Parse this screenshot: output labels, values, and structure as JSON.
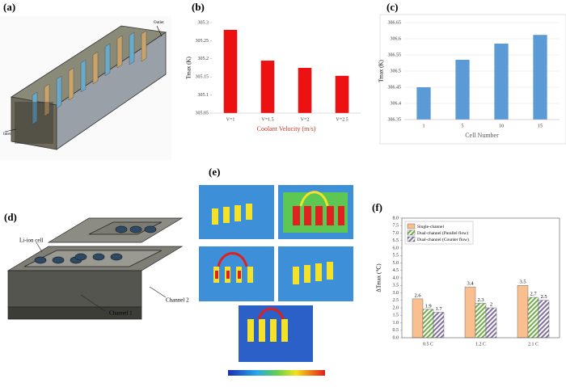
{
  "panel_labels": [
    "(a)",
    "(b)",
    "(c)",
    "(d)",
    "(e)",
    "(f)"
  ],
  "diagram_a": {
    "labels": [
      "Outlet",
      "Inlet"
    ]
  },
  "diagram_d": {
    "labels": [
      "Li-ion cell",
      "Channel 1",
      "Channel 2"
    ]
  },
  "chart_data": [
    {
      "type": "bar",
      "ylabel": "Tmax (K)",
      "xlabel": "Coolant Velocity (m/s)",
      "categories": [
        "V=1",
        "V=1.5",
        "V=2",
        "V=2.5"
      ],
      "values": [
        305.28,
        305.195,
        305.175,
        305.153
      ],
      "color": "#ee1111",
      "ylim": [
        305.05,
        305.3
      ],
      "yticks": [
        305.05,
        305.1,
        305.15,
        305.2,
        305.25,
        305.3
      ],
      "grid": false
    },
    {
      "type": "bar",
      "ylabel": "Tmax (K)",
      "xlabel": "Cell Number",
      "categories": [
        "1",
        "5",
        "10",
        "15"
      ],
      "values": [
        306.45,
        306.535,
        306.585,
        306.612
      ],
      "color": "#5b9bd5",
      "ylim": [
        306.35,
        306.65
      ],
      "yticks": [
        306.35,
        306.4,
        306.45,
        306.5,
        306.55,
        306.6,
        306.65
      ],
      "grid": true
    },
    {
      "type": "grouped_bar",
      "ylabel": "ΔTmax (℃)",
      "categories": [
        "0.5 C",
        "1.2 C",
        "2.1 C"
      ],
      "series": [
        {
          "name": "Single-channel",
          "color": "#f9bf8f",
          "hatch": false,
          "values": [
            2.6,
            3.4,
            3.5
          ]
        },
        {
          "name": "Dual-channel (Parallel flow)",
          "color": "#70ad47",
          "hatch": true,
          "values": [
            1.9,
            2.3,
            2.7
          ]
        },
        {
          "name": "Dual-channel (Counter flow)",
          "color": "#7f6f9f",
          "hatch": true,
          "values": [
            1.7,
            2,
            2.5
          ]
        }
      ],
      "ylim": [
        0,
        8
      ],
      "yticks": [
        {
          "value": 0,
          "label": "0.0"
        },
        0.5,
        {
          "value": 1,
          "label": "1.0"
        },
        1.5,
        {
          "value": 2,
          "label": "2.0"
        },
        2.5,
        {
          "value": 3,
          "label": "3.0"
        },
        3.5,
        {
          "value": 4,
          "label": "4.0"
        },
        4.5,
        {
          "value": 5,
          "label": "5.0"
        },
        5.5,
        {
          "value": 6,
          "label": "6.0"
        },
        6.5,
        {
          "value": 7,
          "label": "7.0"
        },
        7.5,
        {
          "value": 8,
          "label": "8.0"
        }
      ],
      "grid": false,
      "legend": "upper-left"
    }
  ]
}
